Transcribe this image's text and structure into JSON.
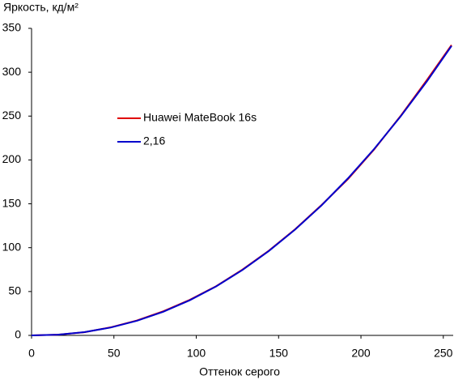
{
  "chart_data": {
    "type": "line",
    "title": "Яркость, кд/м²",
    "x_label": "Оттенок серого",
    "x": [
      0,
      16,
      32,
      48,
      64,
      80,
      96,
      112,
      128,
      144,
      160,
      176,
      192,
      208,
      224,
      240,
      255
    ],
    "series": [
      {
        "name": "Huawei MateBook 16s",
        "color": "#e00000",
        "values": [
          0,
          0.8,
          3.6,
          9.2,
          17,
          27.5,
          40.5,
          56,
          75,
          96.5,
          121,
          148.5,
          178,
          212,
          250,
          291,
          331
        ]
      },
      {
        "name": "2,16",
        "color": "#0000cc",
        "values": [
          0,
          0.83,
          3.73,
          8.95,
          16.7,
          27.0,
          40.0,
          55.8,
          74.5,
          96.1,
          120.6,
          148.1,
          178.8,
          212.5,
          249.4,
          289.5,
          330
        ]
      }
    ],
    "xlim": [
      0,
      256
    ],
    "ylim": [
      0,
      350
    ],
    "xticks": [
      0,
      50,
      100,
      150,
      200,
      250
    ],
    "yticks": [
      0,
      50,
      100,
      150,
      200,
      250,
      300,
      350
    ],
    "grid": false
  }
}
